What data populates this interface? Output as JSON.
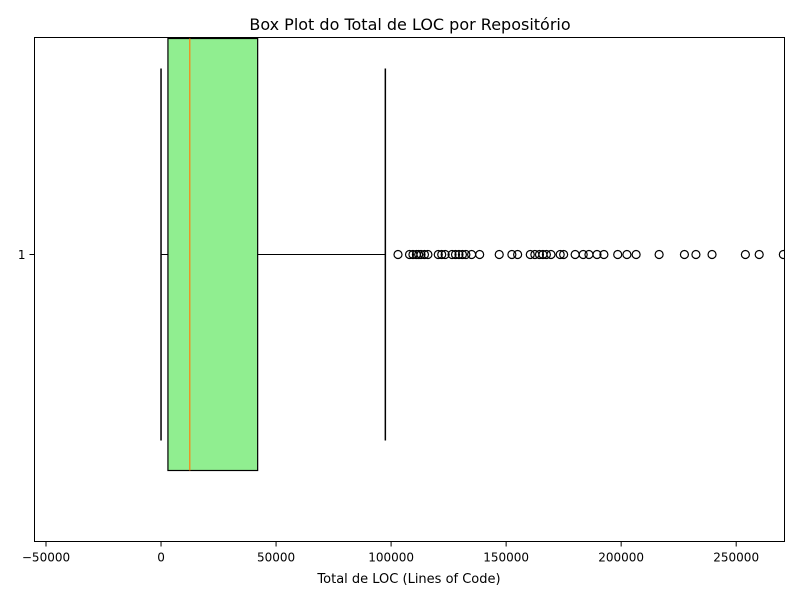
{
  "chart_data": {
    "type": "boxplot",
    "orientation": "horizontal",
    "title": "Box Plot do Total de LOC por Repositório",
    "xlabel": "Total de LOC (Lines of Code)",
    "ylabel": "",
    "xlim": [
      -55000,
      271000
    ],
    "x_ticks": [
      -50000,
      0,
      50000,
      100000,
      150000,
      200000,
      250000
    ],
    "x_tick_labels": [
      "−50000",
      "0",
      "50000",
      "100000",
      "150000",
      "200000",
      "250000"
    ],
    "y_tick_labels": [
      "1"
    ],
    "grid": false,
    "box": {
      "label": "1",
      "whisker_low": 0,
      "q1": 3000,
      "median": 12500,
      "q3": 42000,
      "whisker_high": 97500
    },
    "outliers": [
      103000,
      108000,
      109500,
      111000,
      112000,
      113000,
      114500,
      116000,
      120500,
      122000,
      123500,
      126500,
      128000,
      129500,
      131000,
      132500,
      135000,
      138500,
      147000,
      152500,
      155000,
      160500,
      162500,
      164500,
      166000,
      167500,
      169500,
      173500,
      175000,
      180000,
      183500,
      186000,
      189500,
      192500,
      198500,
      202500,
      206500,
      216500,
      227500,
      232500,
      239500,
      254000,
      260000,
      270500
    ],
    "colors": {
      "box_fill": "#90ee90",
      "box_edge": "#000000",
      "median": "#ff7f0e",
      "whisker": "#000000",
      "outlier_edge": "#000000"
    }
  }
}
